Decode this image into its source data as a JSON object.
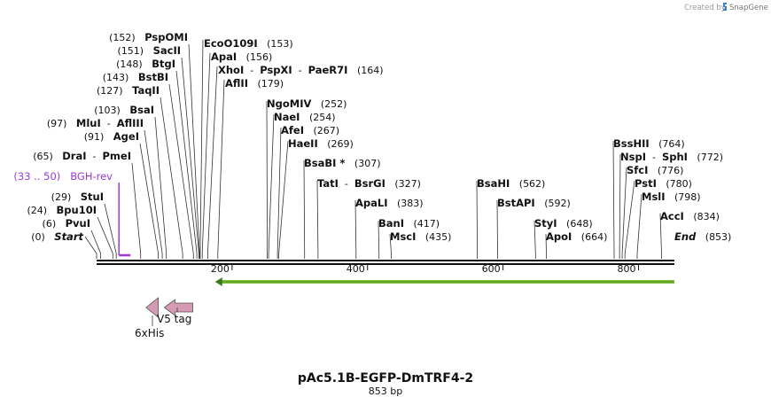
{
  "credit": {
    "prefix": "Created by",
    "brand": "SnapGene",
    "icon": "snapgene-logo-icon"
  },
  "map": {
    "title": "pAc5.1B-EGFP-DmTRF4-2",
    "length_label": "853 bp",
    "length_bp": 853,
    "ticks": [
      {
        "pos": 200,
        "label": "200"
      },
      {
        "pos": 400,
        "label": "400"
      },
      {
        "pos": 600,
        "label": "600"
      },
      {
        "pos": 800,
        "label": "800"
      }
    ],
    "sites": [
      {
        "id": "s152",
        "pos": 152,
        "names": [
          "PspOMI"
        ],
        "pos_label": "(152)"
      },
      {
        "id": "s151",
        "pos": 151,
        "names": [
          "SacII"
        ],
        "pos_label": "(151)"
      },
      {
        "id": "s148",
        "pos": 148,
        "names": [
          "BtgI"
        ],
        "pos_label": "(148)"
      },
      {
        "id": "s143",
        "pos": 143,
        "names": [
          "BstBI"
        ],
        "pos_label": "(143)"
      },
      {
        "id": "s127",
        "pos": 127,
        "names": [
          "TaqII"
        ],
        "pos_label": "(127)"
      },
      {
        "id": "s103",
        "pos": 103,
        "names": [
          "BsaI"
        ],
        "pos_label": "(103)"
      },
      {
        "id": "s97",
        "pos": 97,
        "names": [
          "MluI",
          "AflIII"
        ],
        "pos_label": "(97)"
      },
      {
        "id": "s91",
        "pos": 91,
        "names": [
          "AgeI"
        ],
        "pos_label": "(91)"
      },
      {
        "id": "s65",
        "pos": 65,
        "names": [
          "DraI",
          "PmeI"
        ],
        "pos_label": "(65)"
      },
      {
        "id": "s29",
        "pos": 29,
        "names": [
          "StuI"
        ],
        "pos_label": "(29)"
      },
      {
        "id": "s24",
        "pos": 24,
        "names": [
          "Bpu10I"
        ],
        "pos_label": "(24)"
      },
      {
        "id": "s6",
        "pos": 6,
        "names": [
          "PvuI"
        ],
        "pos_label": "(6)"
      },
      {
        "id": "s153",
        "pos": 153,
        "names": [
          "EcoO109I"
        ],
        "pos_label": "(153)"
      },
      {
        "id": "s156",
        "pos": 156,
        "names": [
          "ApaI"
        ],
        "pos_label": "(156)"
      },
      {
        "id": "s164",
        "pos": 164,
        "names": [
          "XhoI",
          "PspXI",
          "PaeR7I"
        ],
        "pos_label": "(164)"
      },
      {
        "id": "s179",
        "pos": 179,
        "names": [
          "AflII"
        ],
        "pos_label": "(179)"
      },
      {
        "id": "s252",
        "pos": 252,
        "names": [
          "NgoMIV"
        ],
        "pos_label": "(252)"
      },
      {
        "id": "s254",
        "pos": 254,
        "names": [
          "NaeI"
        ],
        "pos_label": "(254)"
      },
      {
        "id": "s267",
        "pos": 267,
        "names": [
          "AfeI"
        ],
        "pos_label": "(267)"
      },
      {
        "id": "s269",
        "pos": 269,
        "names": [
          "HaeII"
        ],
        "pos_label": "(269)"
      },
      {
        "id": "s307",
        "pos": 307,
        "names": [
          "BsaBI *"
        ],
        "pos_label": "(307)"
      },
      {
        "id": "s327",
        "pos": 327,
        "names": [
          "TatI",
          "BsrGI"
        ],
        "pos_label": "(327)"
      },
      {
        "id": "s383",
        "pos": 383,
        "names": [
          "ApaLI"
        ],
        "pos_label": "(383)"
      },
      {
        "id": "s417",
        "pos": 417,
        "names": [
          "BanI"
        ],
        "pos_label": "(417)"
      },
      {
        "id": "s435",
        "pos": 435,
        "names": [
          "MscI"
        ],
        "pos_label": "(435)"
      },
      {
        "id": "s562",
        "pos": 562,
        "names": [
          "BsaHI"
        ],
        "pos_label": "(562)"
      },
      {
        "id": "s592",
        "pos": 592,
        "names": [
          "BstAPI"
        ],
        "pos_label": "(592)"
      },
      {
        "id": "s648",
        "pos": 648,
        "names": [
          "StyI"
        ],
        "pos_label": "(648)"
      },
      {
        "id": "s664",
        "pos": 664,
        "names": [
          "ApoI"
        ],
        "pos_label": "(664)"
      },
      {
        "id": "s764",
        "pos": 764,
        "names": [
          "BssHII"
        ],
        "pos_label": "(764)"
      },
      {
        "id": "s772",
        "pos": 772,
        "names": [
          "NspI",
          "SphI"
        ],
        "pos_label": "(772)"
      },
      {
        "id": "s776",
        "pos": 776,
        "names": [
          "SfcI"
        ],
        "pos_label": "(776)"
      },
      {
        "id": "s780",
        "pos": 780,
        "names": [
          "PstI"
        ],
        "pos_label": "(780)"
      },
      {
        "id": "s798",
        "pos": 798,
        "names": [
          "MslI"
        ],
        "pos_label": "(798)"
      },
      {
        "id": "s834",
        "pos": 834,
        "names": [
          "AccI"
        ],
        "pos_label": "(834)"
      }
    ],
    "start_label": {
      "pos_label": "(0)",
      "name": "Start"
    },
    "end_label": {
      "name": "End",
      "pos_label": "(853)"
    },
    "primer": {
      "range_label": "(33 .. 50)",
      "name": "BGH-rev",
      "start": 33,
      "end": 50,
      "color": "#9a3ad6"
    },
    "orf": {
      "start": 175,
      "end": 853,
      "direction": "reverse",
      "color": "#7ec13a"
    },
    "features": [
      {
        "id": "his",
        "label": "6xHis",
        "start": 73,
        "end": 91,
        "direction": "reverse",
        "color": "#d49bb2"
      },
      {
        "id": "v5",
        "label": "V5 tag",
        "start": 100,
        "end": 142,
        "direction": "reverse",
        "color": "#d49bb2"
      }
    ]
  }
}
